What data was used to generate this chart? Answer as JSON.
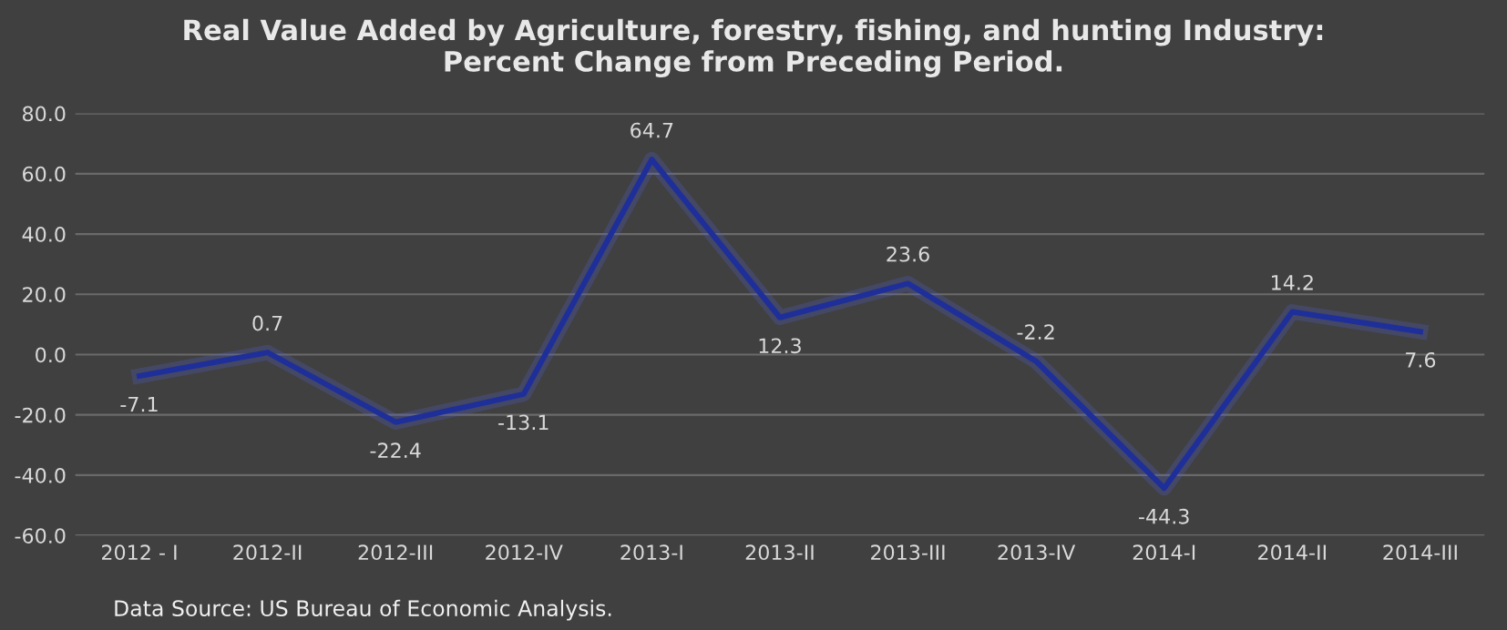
{
  "chart_data": {
    "type": "line",
    "title": "Real Value Added by Agriculture, forestry, fishing, and hunting Industry:\nPercent Change from Preceding Period.",
    "categories": [
      "2012 - I",
      "2012-II",
      "2012-III",
      "2012-IV",
      "2013-I",
      "2013-II",
      "2013-III",
      "2013-IV",
      "2014-I",
      "2014-II",
      "2014-III"
    ],
    "values": [
      -7.1,
      0.7,
      -22.4,
      -13.1,
      64.7,
      12.3,
      23.6,
      -2.2,
      -44.3,
      14.2,
      7.6
    ],
    "value_labels": [
      "-7.1",
      "0.7",
      "-22.4",
      "-13.1",
      "64.7",
      "12.3",
      "23.6",
      "-2.2",
      "-44.3",
      "14.2",
      "7.6"
    ],
    "color": "#1f2f9a",
    "ylim": [
      -60,
      80
    ],
    "yticks": [
      {
        "value": -60,
        "label": "-60.0"
      },
      {
        "value": -40,
        "label": "-40.0"
      },
      {
        "value": -20,
        "label": "-20.0"
      },
      {
        "value": 0,
        "label": "0.0"
      },
      {
        "value": 20,
        "label": "20.0"
      },
      {
        "value": 40,
        "label": "40.0"
      },
      {
        "value": 60,
        "label": "60.0"
      },
      {
        "value": 80,
        "label": "80.0"
      }
    ],
    "grid": "y",
    "marker": "none",
    "line_style": "solid",
    "annotations": [
      "Data Source: US Bureau of Economic Analysis."
    ]
  }
}
